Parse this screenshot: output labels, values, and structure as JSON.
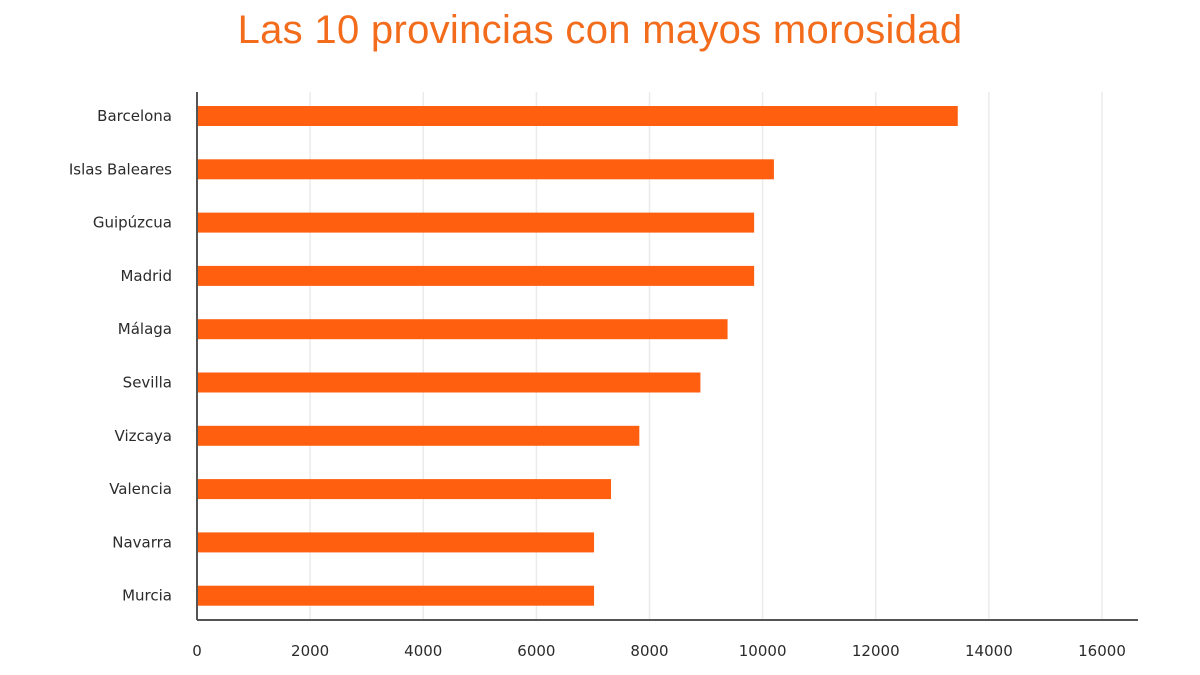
{
  "chart_data": {
    "type": "bar",
    "orientation": "horizontal",
    "title": "Las 10 provincias con mayos morosidad",
    "categories": [
      "Barcelona",
      "Islas Baleares",
      "Guipúzcua",
      "Madrid",
      "Málaga",
      "Sevilla",
      "Vizcaya",
      "Valencia",
      "Navarra",
      "Murcia"
    ],
    "values": [
      13450,
      10200,
      9850,
      9850,
      9380,
      8900,
      7820,
      7320,
      7020,
      7020
    ],
    "xlim": [
      0,
      16000
    ],
    "xticks": [
      0,
      2000,
      4000,
      6000,
      8000,
      10000,
      12000,
      14000,
      16000
    ],
    "grid": "vertical",
    "legend": "none",
    "colors": {
      "bar": "#ff5f0f",
      "title": "#f26c1c",
      "grid": "#ebebeb",
      "axis": "#555555"
    }
  }
}
